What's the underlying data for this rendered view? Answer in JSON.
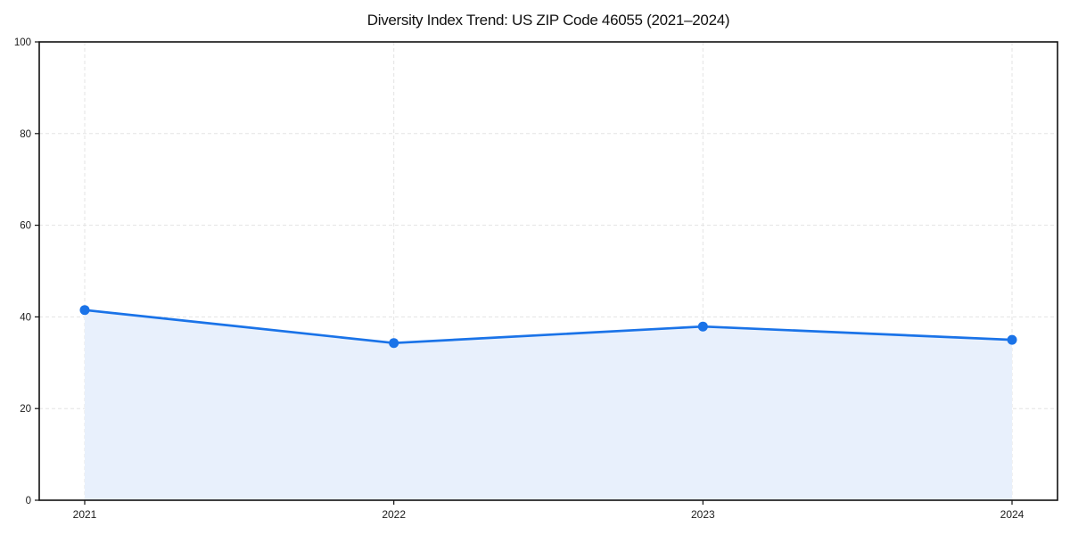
{
  "page": {
    "background": "#ffffff"
  },
  "chart_data": {
    "type": "area",
    "title": "Diversity Index Trend: US ZIP Code 46055 (2021–2024)",
    "categories": [
      "2021",
      "2022",
      "2023",
      "2024"
    ],
    "values": [
      41.5,
      34.3,
      37.9,
      35.0
    ],
    "xlabel": "",
    "ylabel": "",
    "ylim": [
      0,
      100
    ],
    "yticks": [
      0,
      20,
      40,
      60,
      80,
      100
    ],
    "grid": "dashed",
    "legend": "none",
    "colors": {
      "line": "#1a73e8",
      "marker": "#1a73e8",
      "area_fill": "#e8f0fc",
      "grid": "#e3e3e3",
      "axis_box": "#111111",
      "tick_text": "#1b1b1b",
      "plot_background": "#ffffff"
    }
  }
}
